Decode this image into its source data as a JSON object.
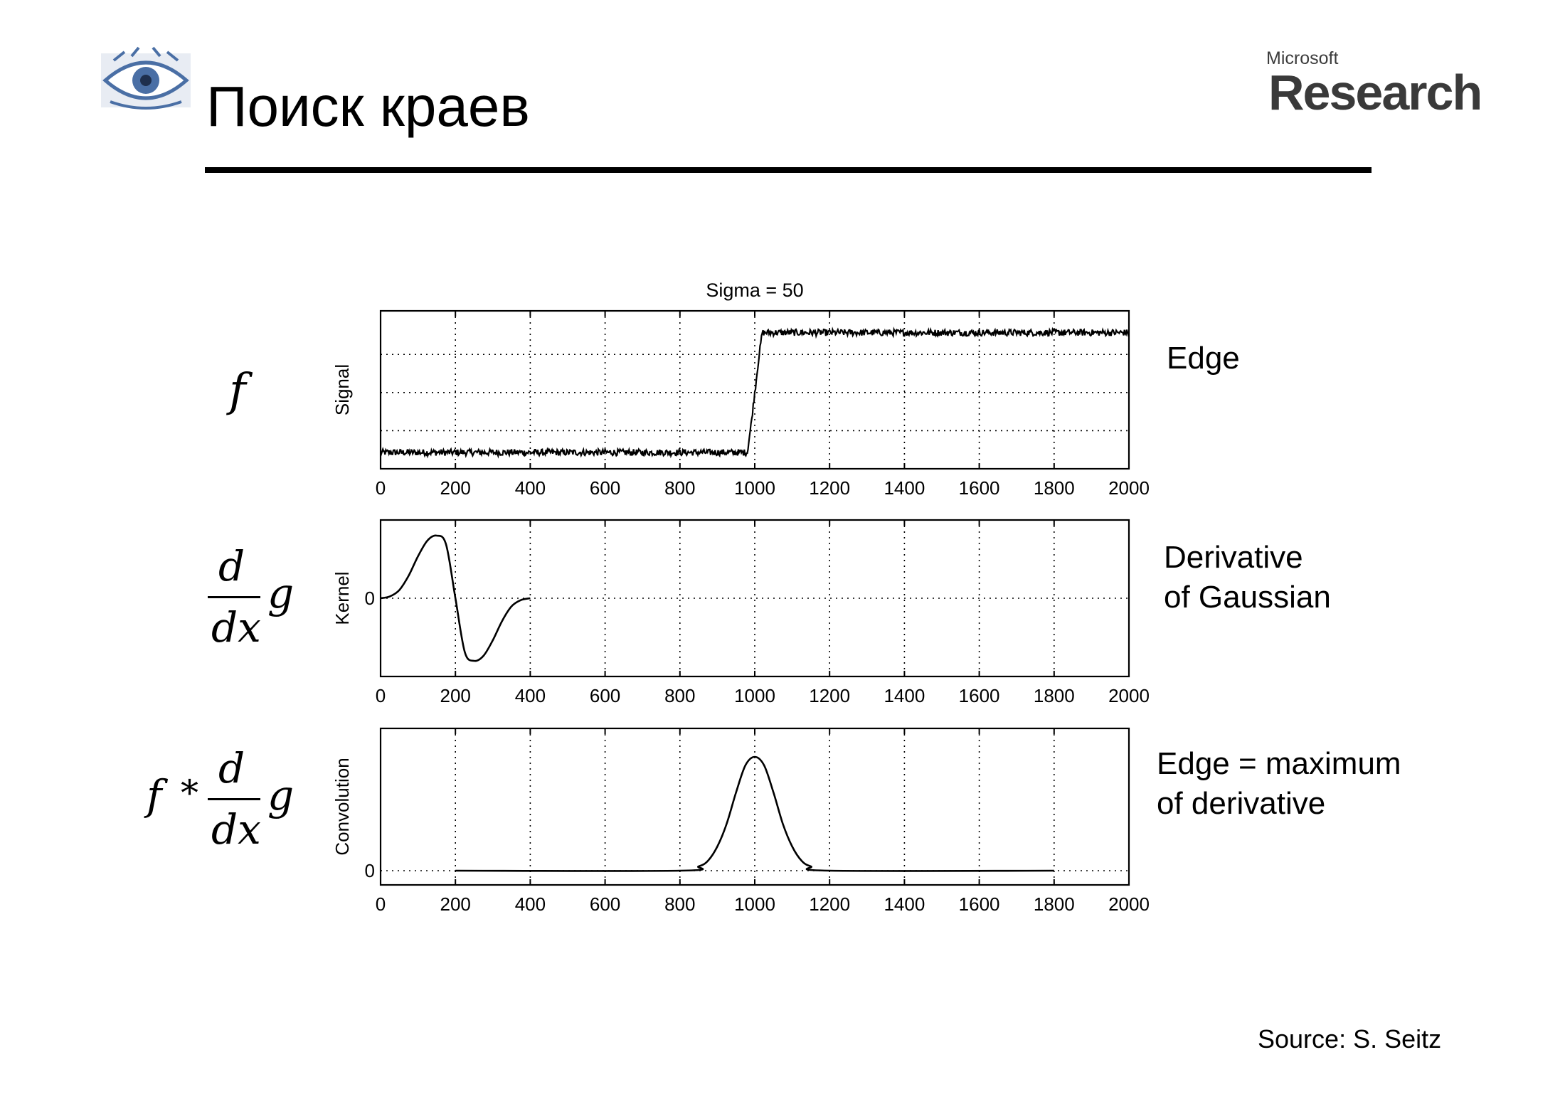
{
  "slide": {
    "title": "Поиск краев",
    "logo_ms_small": "Microsoft",
    "logo_ms_big": "Research",
    "source": "Source: S. Seitz"
  },
  "formulas": {
    "f": "f",
    "d": "d",
    "dx": "dx",
    "g": "g",
    "star": "*"
  },
  "labels": {
    "edge": "Edge",
    "derivative": [
      "Derivative",
      "of Gaussian"
    ],
    "maximum": [
      "Edge = maximum",
      "of derivative"
    ]
  },
  "colors": {
    "line": "#000000",
    "logo_blue": "#4a6fa5",
    "ms_gray": "#3a3a3a"
  },
  "chart_data": [
    {
      "type": "line",
      "title": "Sigma = 50",
      "ylabel": "Signal",
      "xlabel": "",
      "xlim": [
        0,
        2000
      ],
      "ylim": [
        0,
        1.45
      ],
      "x_ticks": [
        0,
        200,
        400,
        600,
        800,
        1000,
        1200,
        1400,
        1600,
        1800,
        2000
      ],
      "y_ticks": [],
      "grid_y": [
        0.35,
        0.7,
        1.05
      ],
      "grid": true,
      "series": [
        {
          "x": [
            0,
            980,
            990,
            1000,
            1010,
            1020,
            2000
          ],
          "y": [
            0.15,
            0.15,
            0.4,
            0.7,
            1.0,
            1.25,
            1.25
          ],
          "noise": 0.03
        }
      ]
    },
    {
      "type": "line",
      "title": "",
      "ylabel": "Kernel",
      "xlabel": "",
      "xlim": [
        0,
        2000
      ],
      "ylim": [
        -1.25,
        1.25
      ],
      "x_ticks": [
        0,
        200,
        400,
        600,
        800,
        1000,
        1200,
        1400,
        1600,
        1800,
        2000
      ],
      "y_ticks": [
        0
      ],
      "grid": true,
      "series": [
        {
          "x": [
            0,
            25,
            50,
            75,
            100,
            125,
            150,
            175,
            200,
            225,
            250,
            275,
            300,
            325,
            350,
            375,
            400
          ],
          "y": [
            0.0,
            0.03,
            0.13,
            0.36,
            0.67,
            0.92,
            1.0,
            0.86,
            0.0,
            -0.86,
            -1.0,
            -0.92,
            -0.67,
            -0.36,
            -0.13,
            -0.03,
            0.0
          ]
        }
      ]
    },
    {
      "type": "line",
      "title": "",
      "ylabel": "Convolution",
      "xlabel": "",
      "xlim": [
        0,
        2000
      ],
      "ylim": [
        -0.1,
        1.0
      ],
      "x_ticks": [
        0,
        200,
        400,
        600,
        800,
        1000,
        1200,
        1400,
        1600,
        1800,
        2000
      ],
      "y_ticks": [
        0
      ],
      "grid": true,
      "series": [
        {
          "x": [
            200,
            800,
            850,
            875,
            900,
            925,
            950,
            975,
            1000,
            1025,
            1050,
            1075,
            1100,
            1125,
            1150,
            1200,
            1800
          ],
          "y": [
            0.0,
            0.0,
            0.03,
            0.07,
            0.17,
            0.33,
            0.55,
            0.74,
            0.8,
            0.74,
            0.55,
            0.33,
            0.17,
            0.07,
            0.03,
            0.0,
            0.0
          ]
        }
      ]
    }
  ]
}
